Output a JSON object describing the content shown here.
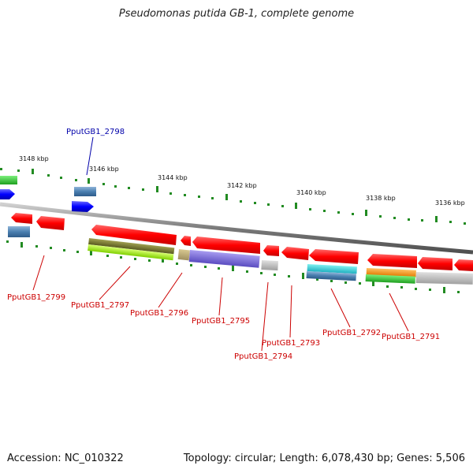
{
  "title": "Pseudomonas putida GB-1, complete genome",
  "accession_label": "Accession: NC_010322",
  "summary": "Topology: circular; Length: 6,078,430 bp; Genes: 5,506",
  "ticks": [
    {
      "label": "3148 kbp"
    },
    {
      "label": "3146 kbp"
    },
    {
      "label": "3144 kbp"
    },
    {
      "label": "3142 kbp"
    },
    {
      "label": "3140 kbp"
    },
    {
      "label": "3138 kbp"
    },
    {
      "label": "3136 kbp"
    }
  ],
  "genes": [
    {
      "label": "PputGB1_2798",
      "color": "#0000aa"
    },
    {
      "label": "PputGB1_2799",
      "color": "#cc0000"
    },
    {
      "label": "PputGB1_2797",
      "color": "#cc0000"
    },
    {
      "label": "PputGB1_2796",
      "color": "#cc0000"
    },
    {
      "label": "PputGB1_2795",
      "color": "#cc0000"
    },
    {
      "label": "PputGB1_2793",
      "color": "#cc0000"
    },
    {
      "label": "PputGB1_2794",
      "color": "#cc0000"
    },
    {
      "label": "PputGB1_2792",
      "color": "#cc0000"
    },
    {
      "label": "PputGB1_2791",
      "color": "#cc0000"
    }
  ]
}
